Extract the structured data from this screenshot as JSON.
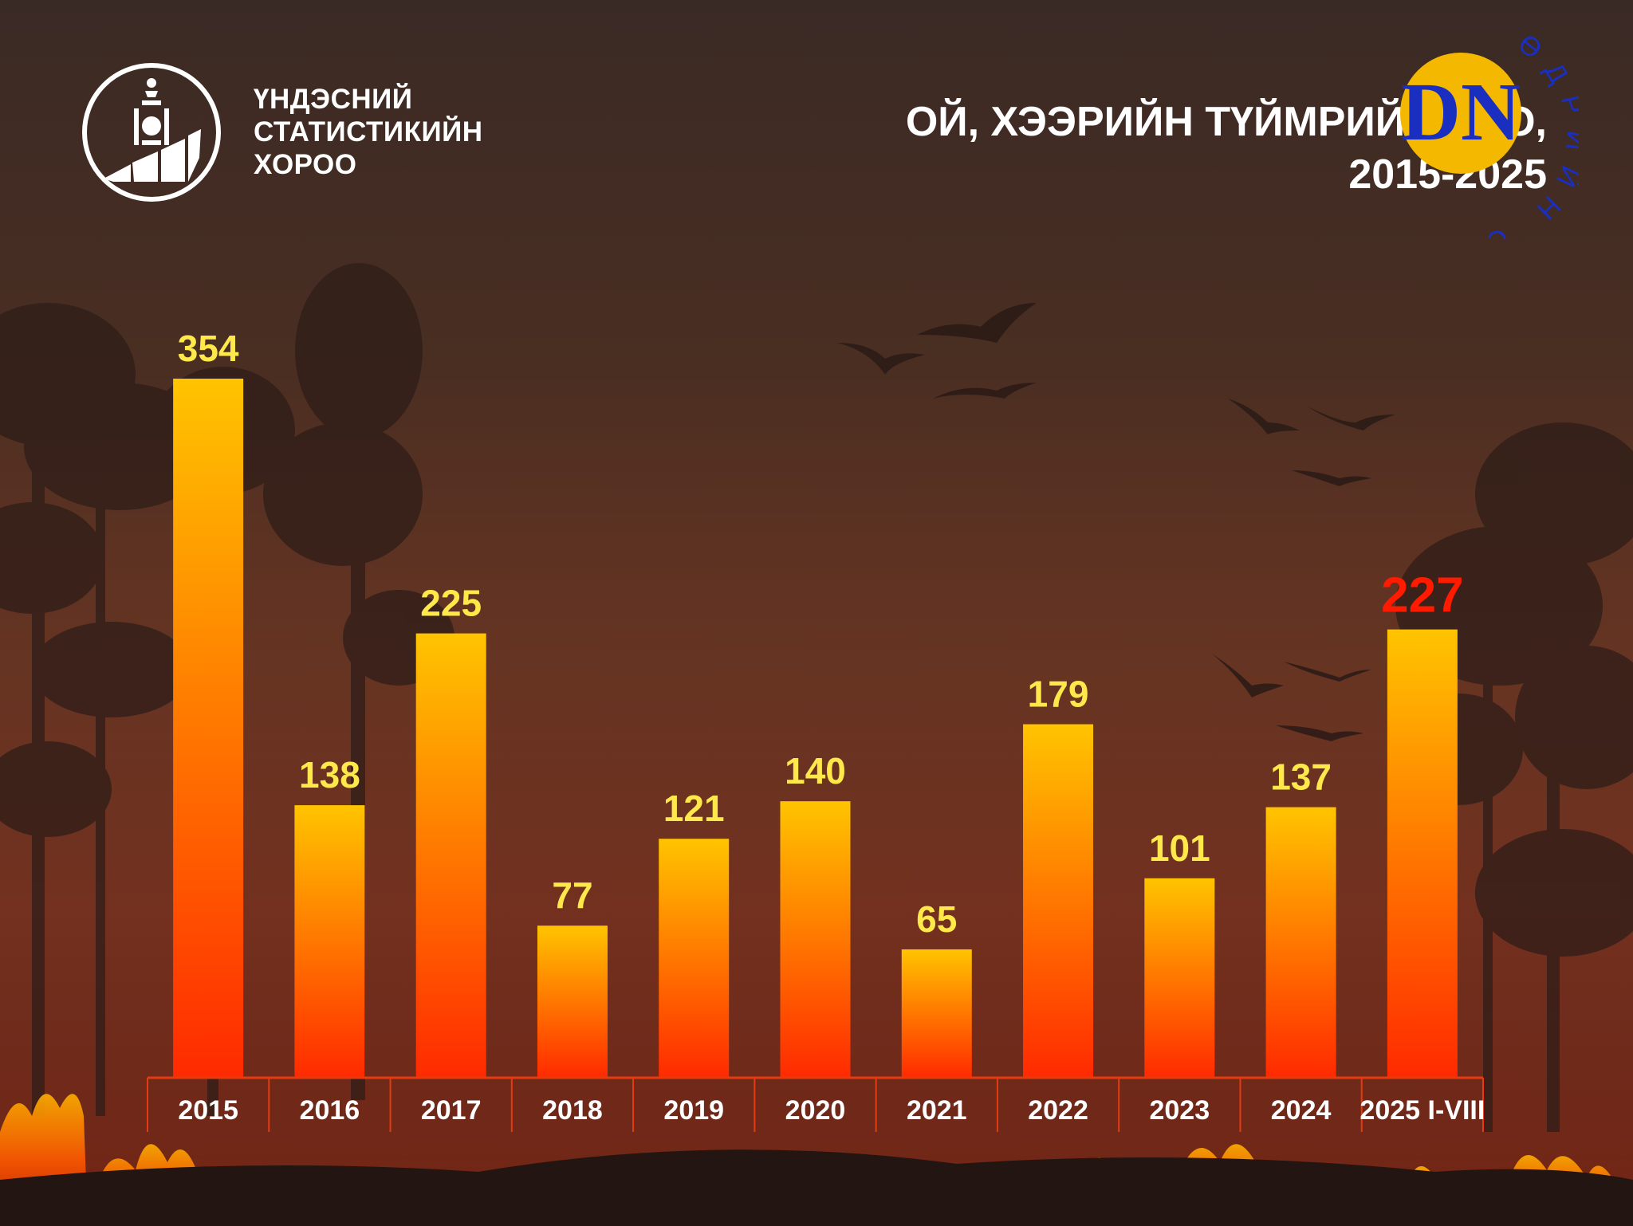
{
  "header": {
    "org_name_lines": [
      "ҮНДЭСНИЙ",
      "СТАТИСТИКИЙН",
      "ХОРОО"
    ],
    "title_line1": "ОЙ, ХЭЭРИЙН ТҮЙМРИЙН ТОО,",
    "title_line2": "2015-2025"
  },
  "watermark": {
    "monogram": "DN",
    "ring_text": "ӨДРИЙН СОНИН DAILY NEWS",
    "color": "#1a2fc0",
    "badge_color": "#f5b800"
  },
  "colors": {
    "bar_top": "#ffc400",
    "bar_bottom": "#ff2a00",
    "label_default": "#ffe94a",
    "label_highlight": "#ff1a00",
    "axis_line": "#e63a10",
    "axis_text": "#ffffff"
  },
  "chart_data": {
    "type": "bar",
    "title": "ОЙ, ХЭЭРИЙН ТҮЙМРИЙН ТОО, 2015-2025",
    "xlabel": "",
    "ylabel": "",
    "categories": [
      "2015",
      "2016",
      "2017",
      "2018",
      "2019",
      "2020",
      "2021",
      "2022",
      "2023",
      "2024",
      "2025 I-VIII"
    ],
    "values": [
      354,
      138,
      225,
      77,
      121,
      140,
      65,
      179,
      101,
      137,
      227
    ],
    "value_labels": [
      "354",
      "138",
      "225",
      "77",
      "121",
      "140",
      "65",
      "179",
      "101",
      "137",
      "227"
    ],
    "highlight_index": 10,
    "ylim": [
      0,
      354
    ],
    "grid": false,
    "legend": "none"
  }
}
